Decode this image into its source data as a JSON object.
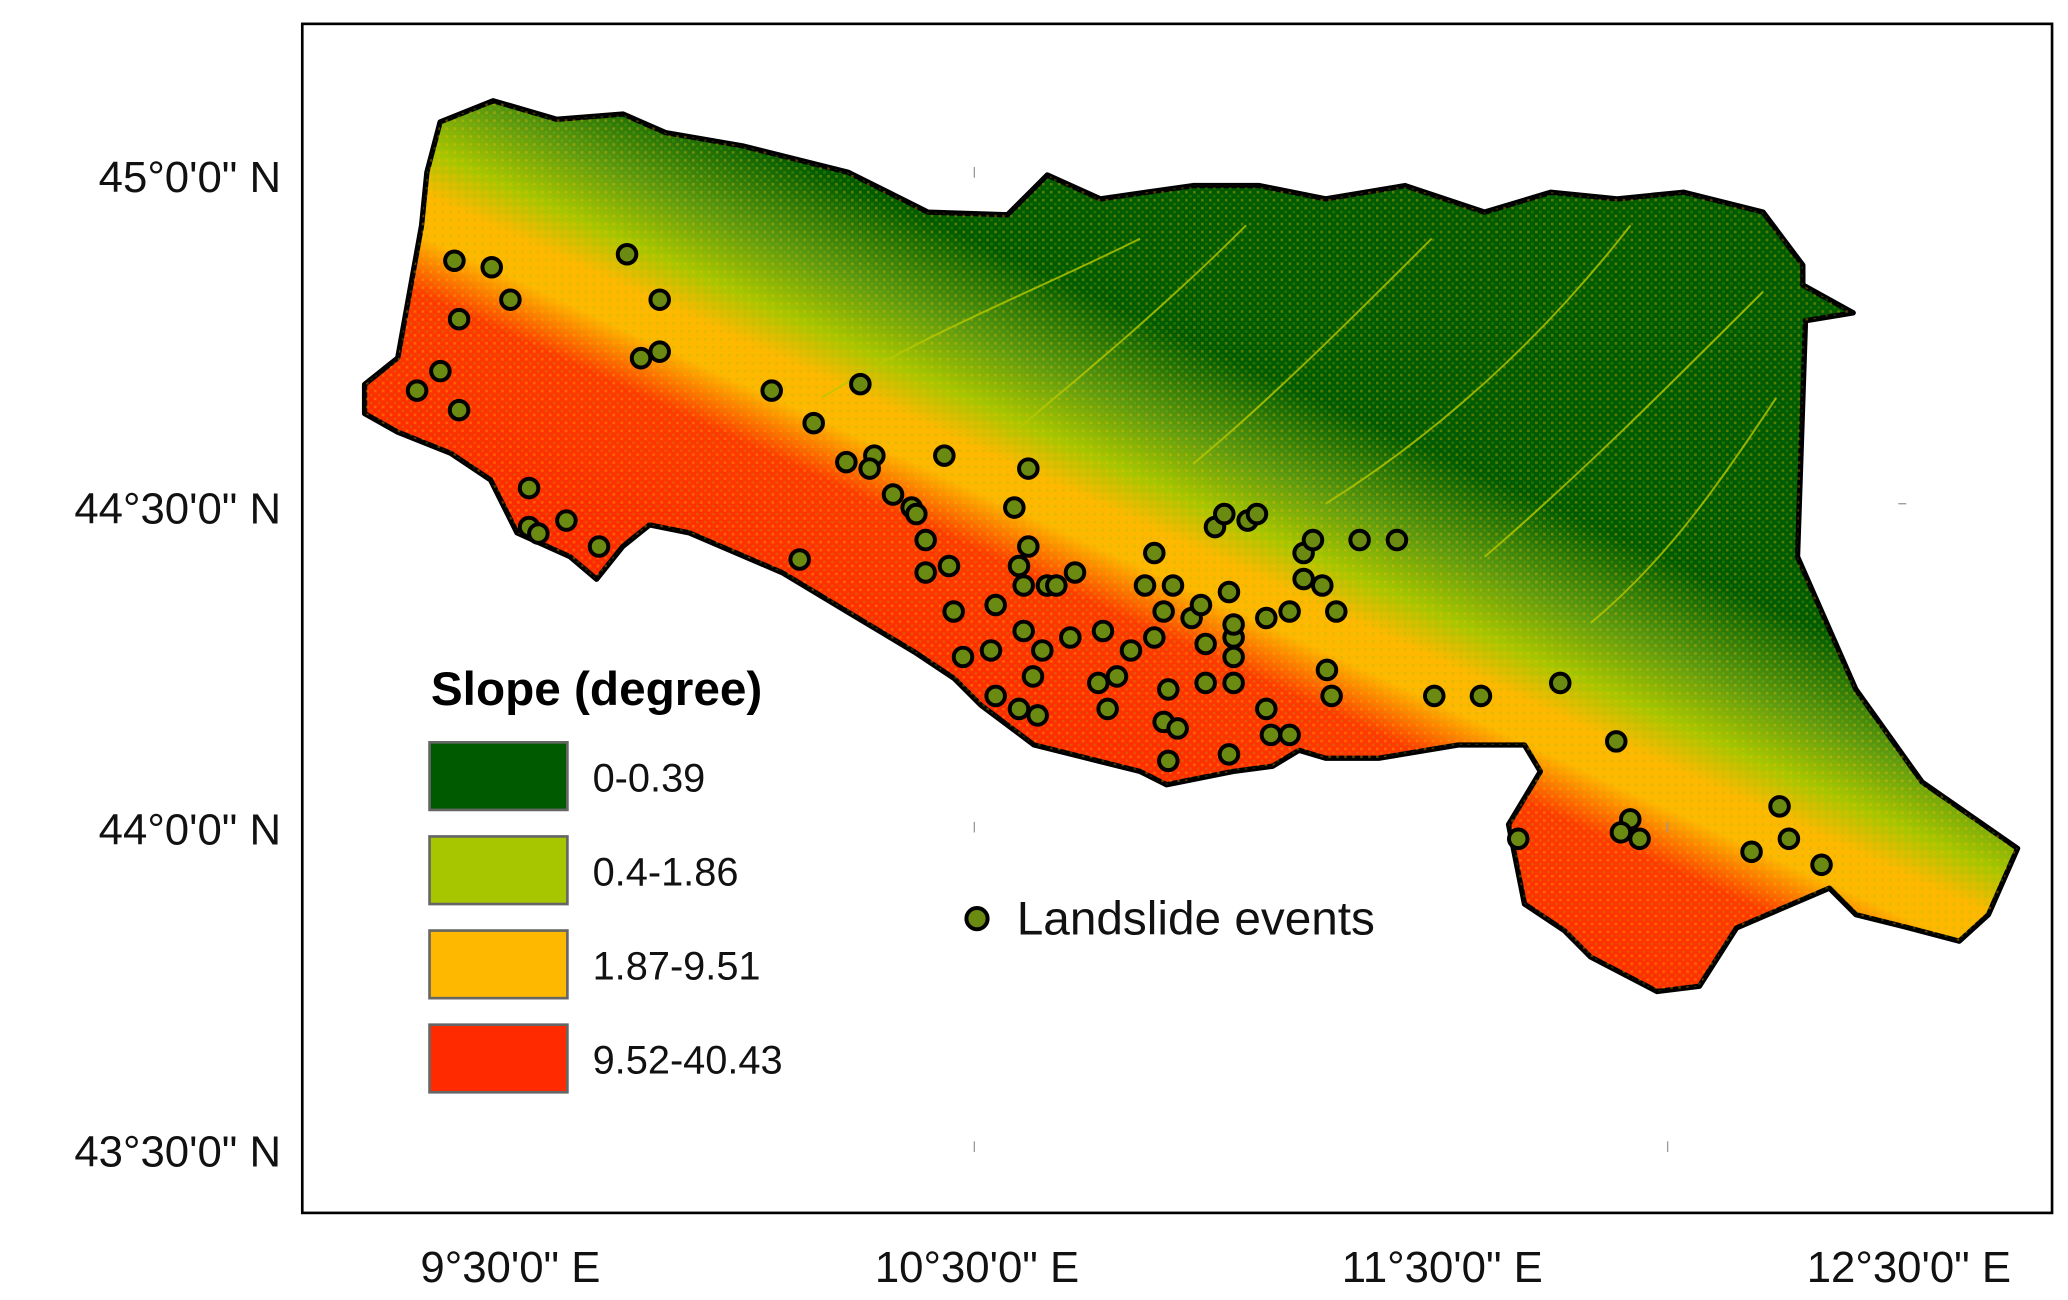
{
  "map": {
    "y_axis_labels": [
      "45°0'0\" N",
      "44°30'0\" N",
      "44°0'0\" N",
      "43°30'0\" N"
    ],
    "x_axis_labels": [
      "9°30'0\" E",
      "10°30'0\" E",
      "11°30'0\" E",
      "12°30'0\" E"
    ],
    "legend": {
      "title": "Slope (degree)",
      "classes": [
        {
          "label": "0-0.39",
          "color": "#005a00"
        },
        {
          "label": "0.4-1.86",
          "color": "#a8c600"
        },
        {
          "label": "1.87-9.51",
          "color": "#ffb800"
        },
        {
          "label": "9.52-40.43",
          "color": "#ff2a00"
        }
      ],
      "points_label": "Landslide events",
      "point_color": "#6b8a12"
    },
    "landslide_events_lon_lat": [
      [
        9.38,
        44.87
      ],
      [
        9.46,
        44.86
      ],
      [
        9.5,
        44.81
      ],
      [
        9.39,
        44.78
      ],
      [
        9.35,
        44.7
      ],
      [
        9.3,
        44.67
      ],
      [
        9.39,
        44.64
      ],
      [
        9.75,
        44.88
      ],
      [
        9.82,
        44.81
      ],
      [
        9.82,
        44.73
      ],
      [
        9.78,
        44.72
      ],
      [
        9.54,
        44.52
      ],
      [
        9.54,
        44.46
      ],
      [
        9.56,
        44.45
      ],
      [
        9.62,
        44.47
      ],
      [
        9.69,
        44.43
      ],
      [
        10.06,
        44.67
      ],
      [
        10.15,
        44.62
      ],
      [
        10.25,
        44.68
      ],
      [
        10.22,
        44.56
      ],
      [
        10.28,
        44.57
      ],
      [
        10.27,
        44.55
      ],
      [
        10.43,
        44.57
      ],
      [
        10.61,
        44.55
      ],
      [
        10.32,
        44.51
      ],
      [
        10.36,
        44.49
      ],
      [
        10.37,
        44.48
      ],
      [
        10.39,
        44.44
      ],
      [
        10.39,
        44.39
      ],
      [
        10.44,
        44.4
      ],
      [
        10.12,
        44.41
      ],
      [
        10.58,
        44.49
      ],
      [
        10.61,
        44.43
      ],
      [
        10.59,
        44.4
      ],
      [
        10.6,
        44.37
      ],
      [
        10.65,
        44.37
      ],
      [
        10.67,
        44.37
      ],
      [
        10.71,
        44.39
      ],
      [
        10.54,
        44.34
      ],
      [
        10.45,
        44.33
      ],
      [
        10.47,
        44.26
      ],
      [
        10.53,
        44.27
      ],
      [
        10.6,
        44.3
      ],
      [
        10.64,
        44.27
      ],
      [
        10.7,
        44.29
      ],
      [
        10.62,
        44.23
      ],
      [
        10.54,
        44.2
      ],
      [
        10.59,
        44.18
      ],
      [
        10.63,
        44.17
      ],
      [
        10.77,
        44.3
      ],
      [
        10.83,
        44.27
      ],
      [
        10.76,
        44.22
      ],
      [
        10.8,
        44.23
      ],
      [
        10.78,
        44.18
      ],
      [
        10.88,
        44.42
      ],
      [
        10.86,
        44.37
      ],
      [
        10.88,
        44.29
      ],
      [
        10.92,
        44.37
      ],
      [
        10.9,
        44.33
      ],
      [
        10.96,
        44.32
      ],
      [
        10.98,
        44.34
      ],
      [
        10.99,
        44.28
      ],
      [
        11.05,
        44.29
      ],
      [
        11.05,
        44.26
      ],
      [
        11.04,
        44.36
      ],
      [
        11.05,
        44.31
      ],
      [
        10.91,
        44.21
      ],
      [
        10.9,
        44.16
      ],
      [
        10.93,
        44.15
      ],
      [
        10.91,
        44.1
      ],
      [
        10.99,
        44.22
      ],
      [
        11.05,
        44.22
      ],
      [
        11.04,
        44.11
      ],
      [
        11.01,
        44.46
      ],
      [
        11.03,
        44.48
      ],
      [
        11.08,
        44.47
      ],
      [
        11.1,
        44.48
      ],
      [
        11.12,
        44.32
      ],
      [
        11.17,
        44.33
      ],
      [
        11.12,
        44.18
      ],
      [
        11.13,
        44.14
      ],
      [
        11.17,
        44.14
      ],
      [
        11.2,
        44.42
      ],
      [
        11.22,
        44.44
      ],
      [
        11.2,
        44.38
      ],
      [
        11.24,
        44.37
      ],
      [
        11.27,
        44.33
      ],
      [
        11.32,
        44.44
      ],
      [
        11.4,
        44.44
      ],
      [
        11.25,
        44.24
      ],
      [
        11.26,
        44.2
      ],
      [
        11.48,
        44.2
      ],
      [
        11.58,
        44.2
      ],
      [
        11.75,
        44.22
      ],
      [
        11.87,
        44.13
      ],
      [
        11.66,
        43.98
      ],
      [
        11.9,
        44.01
      ],
      [
        11.88,
        43.99
      ],
      [
        11.92,
        43.98
      ],
      [
        12.16,
        43.96
      ],
      [
        12.22,
        44.03
      ],
      [
        12.24,
        43.98
      ],
      [
        12.31,
        43.94
      ]
    ]
  }
}
